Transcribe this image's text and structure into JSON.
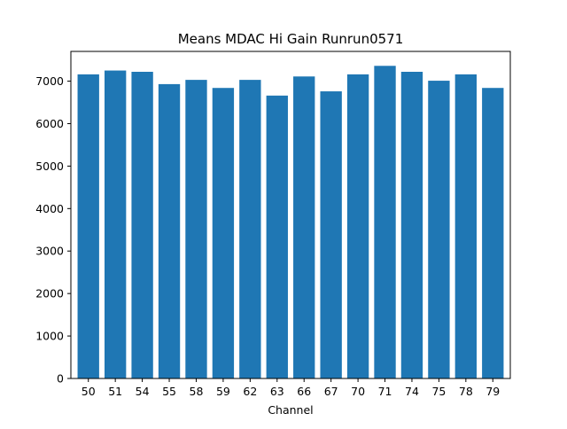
{
  "chart_data": {
    "type": "bar",
    "title": "Means MDAC Hi Gain Runrun0571",
    "xlabel": "Channel",
    "ylabel": "",
    "categories": [
      "50",
      "51",
      "54",
      "55",
      "58",
      "59",
      "62",
      "63",
      "66",
      "67",
      "70",
      "71",
      "74",
      "75",
      "78",
      "79"
    ],
    "values": [
      7160,
      7250,
      7220,
      6930,
      7030,
      6840,
      7030,
      6660,
      7110,
      6760,
      7160,
      7360,
      7220,
      7010,
      7160,
      6840
    ],
    "ylim": [
      0,
      7700
    ],
    "yticks": [
      0,
      1000,
      2000,
      3000,
      4000,
      5000,
      6000,
      7000
    ],
    "grid": false,
    "bar_color": "#1f77b4"
  }
}
